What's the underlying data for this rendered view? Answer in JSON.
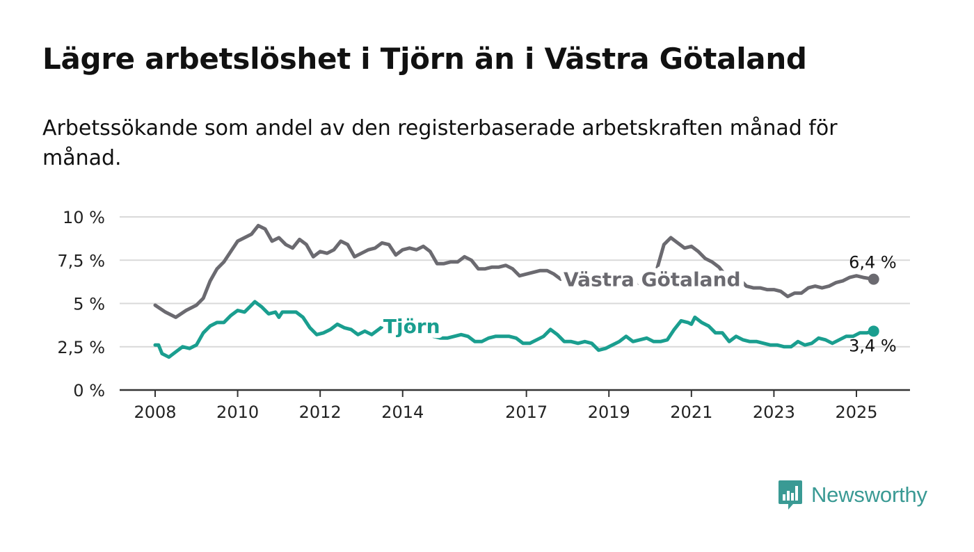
{
  "title": "Lägre arbetslöshet i Tjörn än i Västra Götaland",
  "subtitle": "Arbetssökande som andel av den registerbaserade arbetskraften månad för månad.",
  "brand": {
    "name": "Newsworthy",
    "icon": "newsworthy-logo-icon",
    "color": "#3a9a94"
  },
  "chart_data": {
    "type": "line",
    "title": "Lägre arbetslöshet i Tjörn än i Västra Götaland",
    "subtitle": "Arbetssökande som andel av den registerbaserade arbetskraften månad för månad.",
    "xlabel": "",
    "ylabel": "",
    "x_ticks": [
      "2008",
      "2010",
      "2012",
      "2014",
      "2017",
      "2019",
      "2021",
      "2023",
      "2025"
    ],
    "y_ticks": [
      "0 %",
      "2,5 %",
      "5 %",
      "7,5 %",
      "10 %"
    ],
    "ylim": [
      0,
      10
    ],
    "xlim": [
      "2008-01",
      "2025-06"
    ],
    "grid": "horizontal",
    "legend": "inline labels on lines",
    "series": [
      {
        "name": "Västra Götaland",
        "color": "#6b6a70",
        "end_label": "6,4 %",
        "points": [
          [
            "2008-01",
            4.9
          ],
          [
            "2008-04",
            4.5
          ],
          [
            "2008-07",
            4.2
          ],
          [
            "2008-10",
            4.6
          ],
          [
            "2009-01",
            4.9
          ],
          [
            "2009-03",
            5.3
          ],
          [
            "2009-05",
            6.3
          ],
          [
            "2009-07",
            7.0
          ],
          [
            "2009-09",
            7.4
          ],
          [
            "2009-11",
            8.0
          ],
          [
            "2010-01",
            8.6
          ],
          [
            "2010-03",
            8.8
          ],
          [
            "2010-05",
            9.0
          ],
          [
            "2010-07",
            9.5
          ],
          [
            "2010-09",
            9.3
          ],
          [
            "2010-11",
            8.6
          ],
          [
            "2011-01",
            8.8
          ],
          [
            "2011-03",
            8.4
          ],
          [
            "2011-05",
            8.2
          ],
          [
            "2011-07",
            8.7
          ],
          [
            "2011-09",
            8.4
          ],
          [
            "2011-11",
            7.7
          ],
          [
            "2012-01",
            8.0
          ],
          [
            "2012-03",
            7.9
          ],
          [
            "2012-05",
            8.1
          ],
          [
            "2012-07",
            8.6
          ],
          [
            "2012-09",
            8.4
          ],
          [
            "2012-11",
            7.7
          ],
          [
            "2013-01",
            7.9
          ],
          [
            "2013-03",
            8.1
          ],
          [
            "2013-05",
            8.2
          ],
          [
            "2013-07",
            8.5
          ],
          [
            "2013-09",
            8.4
          ],
          [
            "2013-11",
            7.8
          ],
          [
            "2014-01",
            8.1
          ],
          [
            "2014-03",
            8.2
          ],
          [
            "2014-05",
            8.1
          ],
          [
            "2014-07",
            8.3
          ],
          [
            "2014-09",
            8.0
          ],
          [
            "2014-11",
            7.3
          ],
          [
            "2015-01",
            7.3
          ],
          [
            "2015-03",
            7.4
          ],
          [
            "2015-05",
            7.4
          ],
          [
            "2015-07",
            7.7
          ],
          [
            "2015-09",
            7.5
          ],
          [
            "2015-11",
            7.0
          ],
          [
            "2016-01",
            7.0
          ],
          [
            "2016-03",
            7.1
          ],
          [
            "2016-05",
            7.1
          ],
          [
            "2016-07",
            7.2
          ],
          [
            "2016-09",
            7.0
          ],
          [
            "2016-11",
            6.6
          ],
          [
            "2017-01",
            6.7
          ],
          [
            "2017-03",
            6.8
          ],
          [
            "2017-05",
            6.9
          ],
          [
            "2017-07",
            6.9
          ],
          [
            "2017-09",
            6.7
          ],
          [
            "2017-11",
            6.4
          ],
          [
            "2018-01",
            6.5
          ],
          [
            "2018-03",
            6.4
          ],
          [
            "2018-05",
            6.5
          ],
          [
            "2018-07",
            6.6
          ],
          [
            "2018-09",
            6.4
          ],
          [
            "2018-11",
            6.1
          ],
          [
            "2019-01",
            6.1
          ],
          [
            "2019-03",
            6.1
          ],
          [
            "2019-05",
            6.2
          ],
          [
            "2019-07",
            6.3
          ],
          [
            "2019-09",
            6.2
          ],
          [
            "2019-11",
            6.1
          ],
          [
            "2020-01",
            6.3
          ],
          [
            "2020-03",
            7.0
          ],
          [
            "2020-05",
            8.4
          ],
          [
            "2020-07",
            8.8
          ],
          [
            "2020-09",
            8.5
          ],
          [
            "2020-11",
            8.2
          ],
          [
            "2021-01",
            8.3
          ],
          [
            "2021-03",
            8.0
          ],
          [
            "2021-05",
            7.6
          ],
          [
            "2021-07",
            7.4
          ],
          [
            "2021-09",
            7.1
          ],
          [
            "2021-11",
            6.6
          ],
          [
            "2022-01",
            6.5
          ],
          [
            "2022-03",
            6.4
          ],
          [
            "2022-05",
            6.0
          ],
          [
            "2022-07",
            5.9
          ],
          [
            "2022-09",
            5.9
          ],
          [
            "2022-11",
            5.8
          ],
          [
            "2023-01",
            5.8
          ],
          [
            "2023-03",
            5.7
          ],
          [
            "2023-05",
            5.4
          ],
          [
            "2023-07",
            5.6
          ],
          [
            "2023-09",
            5.6
          ],
          [
            "2023-11",
            5.9
          ],
          [
            "2024-01",
            6.0
          ],
          [
            "2024-03",
            5.9
          ],
          [
            "2024-05",
            6.0
          ],
          [
            "2024-07",
            6.2
          ],
          [
            "2024-09",
            6.3
          ],
          [
            "2024-11",
            6.5
          ],
          [
            "2025-01",
            6.6
          ],
          [
            "2025-03",
            6.5
          ],
          [
            "2025-06",
            6.4
          ]
        ]
      },
      {
        "name": "Tjörn",
        "color": "#1a9e8f",
        "end_label": "3,4 %",
        "points": [
          [
            "2008-01",
            2.6
          ],
          [
            "2008-02",
            2.6
          ],
          [
            "2008-03",
            2.1
          ],
          [
            "2008-05",
            1.9
          ],
          [
            "2008-07",
            2.2
          ],
          [
            "2008-09",
            2.5
          ],
          [
            "2008-11",
            2.4
          ],
          [
            "2009-01",
            2.6
          ],
          [
            "2009-03",
            3.3
          ],
          [
            "2009-05",
            3.7
          ],
          [
            "2009-07",
            3.9
          ],
          [
            "2009-09",
            3.9
          ],
          [
            "2009-11",
            4.3
          ],
          [
            "2010-01",
            4.6
          ],
          [
            "2010-03",
            4.5
          ],
          [
            "2010-05",
            4.9
          ],
          [
            "2010-06",
            5.1
          ],
          [
            "2010-08",
            4.8
          ],
          [
            "2010-10",
            4.4
          ],
          [
            "2010-12",
            4.5
          ],
          [
            "2011-01",
            4.2
          ],
          [
            "2011-02",
            4.5
          ],
          [
            "2011-04",
            4.5
          ],
          [
            "2011-06",
            4.5
          ],
          [
            "2011-08",
            4.2
          ],
          [
            "2011-10",
            3.6
          ],
          [
            "2011-12",
            3.2
          ],
          [
            "2012-02",
            3.3
          ],
          [
            "2012-04",
            3.5
          ],
          [
            "2012-06",
            3.8
          ],
          [
            "2012-08",
            3.6
          ],
          [
            "2012-10",
            3.5
          ],
          [
            "2012-12",
            3.2
          ],
          [
            "2013-02",
            3.4
          ],
          [
            "2013-04",
            3.2
          ],
          [
            "2013-06",
            3.5
          ],
          [
            "2013-08",
            3.8
          ],
          [
            "2013-10",
            4.1
          ],
          [
            "2013-12",
            3.9
          ],
          [
            "2014-02",
            3.6
          ],
          [
            "2014-04",
            3.4
          ],
          [
            "2014-06",
            3.3
          ],
          [
            "2014-08",
            3.2
          ],
          [
            "2014-10",
            3.1
          ],
          [
            "2014-12",
            3.0
          ],
          [
            "2015-02",
            3.0
          ],
          [
            "2015-04",
            3.1
          ],
          [
            "2015-06",
            3.2
          ],
          [
            "2015-08",
            3.1
          ],
          [
            "2015-10",
            2.8
          ],
          [
            "2015-12",
            2.8
          ],
          [
            "2016-02",
            3.0
          ],
          [
            "2016-04",
            3.1
          ],
          [
            "2016-06",
            3.1
          ],
          [
            "2016-08",
            3.1
          ],
          [
            "2016-10",
            3.0
          ],
          [
            "2016-12",
            2.7
          ],
          [
            "2017-02",
            2.7
          ],
          [
            "2017-04",
            2.9
          ],
          [
            "2017-06",
            3.1
          ],
          [
            "2017-08",
            3.5
          ],
          [
            "2017-10",
            3.2
          ],
          [
            "2017-12",
            2.8
          ],
          [
            "2018-02",
            2.8
          ],
          [
            "2018-04",
            2.7
          ],
          [
            "2018-06",
            2.8
          ],
          [
            "2018-08",
            2.7
          ],
          [
            "2018-10",
            2.3
          ],
          [
            "2018-12",
            2.4
          ],
          [
            "2019-02",
            2.6
          ],
          [
            "2019-04",
            2.8
          ],
          [
            "2019-06",
            3.1
          ],
          [
            "2019-08",
            2.8
          ],
          [
            "2019-10",
            2.9
          ],
          [
            "2019-12",
            3.0
          ],
          [
            "2020-02",
            2.8
          ],
          [
            "2020-04",
            2.8
          ],
          [
            "2020-06",
            2.9
          ],
          [
            "2020-08",
            3.5
          ],
          [
            "2020-10",
            4.0
          ],
          [
            "2020-12",
            3.9
          ],
          [
            "2021-01",
            3.8
          ],
          [
            "2021-02",
            4.2
          ],
          [
            "2021-04",
            3.9
          ],
          [
            "2021-06",
            3.7
          ],
          [
            "2021-08",
            3.3
          ],
          [
            "2021-10",
            3.3
          ],
          [
            "2021-12",
            2.8
          ],
          [
            "2022-02",
            3.1
          ],
          [
            "2022-04",
            2.9
          ],
          [
            "2022-06",
            2.8
          ],
          [
            "2022-08",
            2.8
          ],
          [
            "2022-10",
            2.7
          ],
          [
            "2022-12",
            2.6
          ],
          [
            "2023-02",
            2.6
          ],
          [
            "2023-04",
            2.5
          ],
          [
            "2023-06",
            2.5
          ],
          [
            "2023-08",
            2.8
          ],
          [
            "2023-10",
            2.6
          ],
          [
            "2023-12",
            2.7
          ],
          [
            "2024-02",
            3.0
          ],
          [
            "2024-04",
            2.9
          ],
          [
            "2024-06",
            2.7
          ],
          [
            "2024-08",
            2.9
          ],
          [
            "2024-10",
            3.1
          ],
          [
            "2024-12",
            3.1
          ],
          [
            "2025-02",
            3.3
          ],
          [
            "2025-04",
            3.3
          ],
          [
            "2025-06",
            3.4
          ]
        ]
      }
    ]
  }
}
